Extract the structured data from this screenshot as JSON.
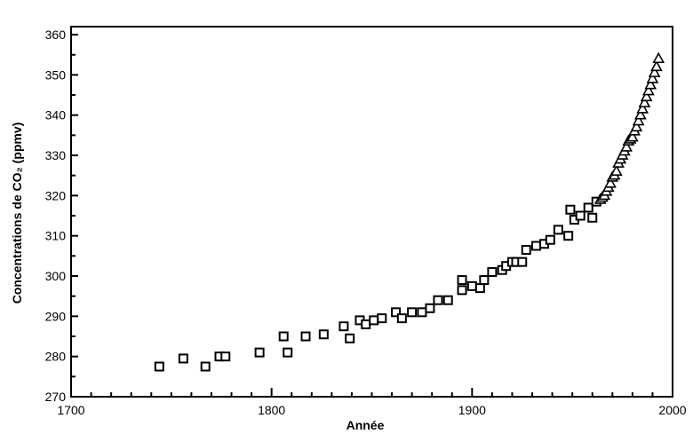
{
  "chart_data": {
    "type": "scatter",
    "title": "",
    "xlabel": "Année",
    "ylabel": "Concentrations de CO₂ (ppmv)",
    "xlim": [
      1700,
      2000
    ],
    "ylim": [
      270,
      362
    ],
    "x_ticks": [
      1700,
      1800,
      1900,
      2000
    ],
    "y_ticks": [
      270,
      280,
      290,
      300,
      310,
      320,
      330,
      340,
      350,
      360
    ],
    "grid": false,
    "legend": "none",
    "series": [
      {
        "marker": "square",
        "x": [
          1744,
          1756,
          1767,
          1774,
          1777,
          1794,
          1806,
          1808,
          1817,
          1826,
          1836,
          1839,
          1844,
          1847,
          1851,
          1855,
          1862,
          1865,
          1870,
          1875,
          1879,
          1883,
          1888,
          1895,
          1895,
          1900,
          1904,
          1906,
          1910,
          1915,
          1917,
          1920,
          1922,
          1925,
          1927,
          1932,
          1936,
          1939,
          1943,
          1948,
          1949,
          1951,
          1954,
          1958,
          1960,
          1962
        ],
        "values": [
          277.5,
          279.5,
          277.5,
          280,
          280,
          281,
          285,
          281,
          285,
          285.5,
          287.5,
          284.5,
          289,
          288,
          289,
          289.5,
          291,
          289.5,
          291,
          291,
          292,
          294,
          294,
          296.5,
          299,
          297.5,
          297,
          299,
          301,
          301.5,
          302.5,
          303.5,
          303.5,
          303.5,
          306.5,
          307.5,
          308,
          309,
          311.5,
          310,
          316.5,
          314,
          315,
          317,
          314.5,
          318.5
        ]
      },
      {
        "marker": "triangle",
        "x": [
          1964,
          1965,
          1966,
          1967,
          1968,
          1969,
          1970,
          1971,
          1972,
          1973,
          1974,
          1975,
          1976,
          1977,
          1978,
          1979,
          1980,
          1981,
          1982,
          1983,
          1984,
          1985,
          1986,
          1987,
          1988,
          1989,
          1990,
          1991,
          1992,
          1993
        ],
        "values": [
          319,
          319.5,
          320,
          321,
          322,
          323,
          324.5,
          325,
          326,
          328,
          329,
          330,
          331,
          332,
          333.5,
          334,
          334.5,
          336,
          337,
          338.5,
          340,
          341.5,
          343,
          344.5,
          346,
          347.5,
          349,
          350.5,
          352,
          354
        ]
      }
    ]
  }
}
